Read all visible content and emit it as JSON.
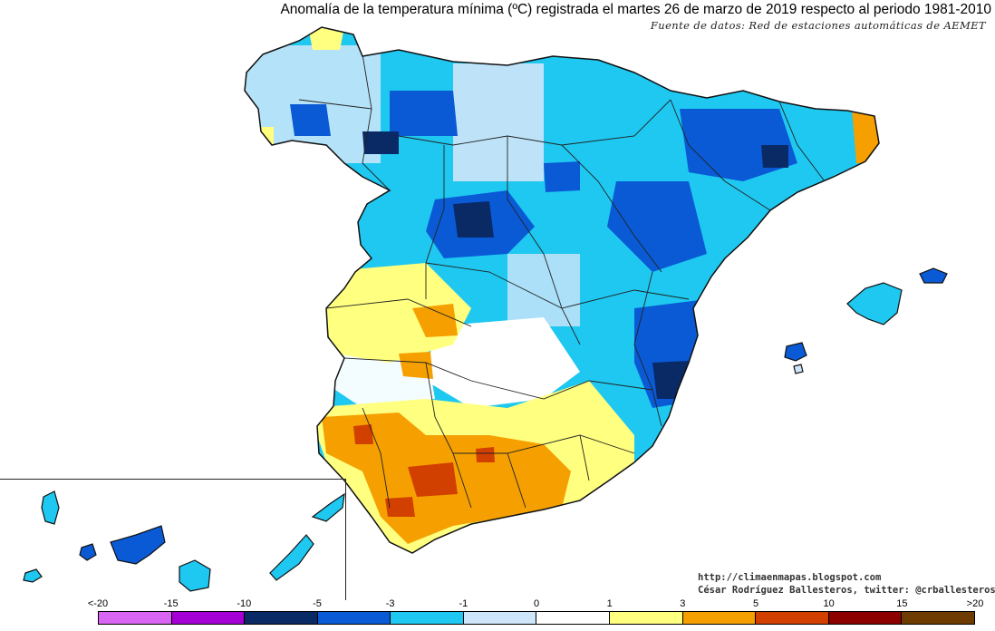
{
  "title": "Anomalía de la temperatura mínima (ºC) registrada el martes 26 de marzo de 2019 respecto al periodo 1981-2010",
  "subtitle": "Fuente de datos: Red de estaciones automáticas de AEMET",
  "credits": {
    "blog": "http://climaenmapas.blogspot.com",
    "author": "César Rodríguez Ballesteros, twitter: @crballesteros"
  },
  "legend": {
    "labels": [
      "<-20",
      "-15",
      "-10",
      "-5",
      "-3",
      "-1",
      "0",
      "1",
      "3",
      "5",
      "10",
      "15",
      ">20"
    ],
    "colors": [
      "#d966f2",
      "#a400d6",
      "#0a2a66",
      "#0a5ad6",
      "#1ec8f0",
      "#cfe6fa",
      "#ffffff",
      "#ffff80",
      "#f5a000",
      "#d24000",
      "#8c0000",
      "#6e3c00"
    ]
  },
  "map": {
    "regions": [
      {
        "name": "galicia-northwest",
        "anomaly_class": "-3 to -1"
      },
      {
        "name": "castilla-leon-north",
        "anomaly_class": "-5 to -3"
      },
      {
        "name": "aragon-catalonia",
        "anomaly_class": "-5 to -3"
      },
      {
        "name": "girona-coast",
        "anomaly_class": "3 to 5"
      },
      {
        "name": "extremadura",
        "anomaly_class": "1 to 3"
      },
      {
        "name": "andalucia-west",
        "anomaly_class": "3 to 5"
      },
      {
        "name": "andalucia-south",
        "anomaly_class": "5 to 10"
      },
      {
        "name": "valencia-murcia",
        "anomaly_class": "-5 to -3"
      },
      {
        "name": "balearic-islands",
        "anomaly_class": "-3 to -1"
      },
      {
        "name": "canary-islands",
        "anomaly_class": "-3 to -1"
      }
    ]
  }
}
